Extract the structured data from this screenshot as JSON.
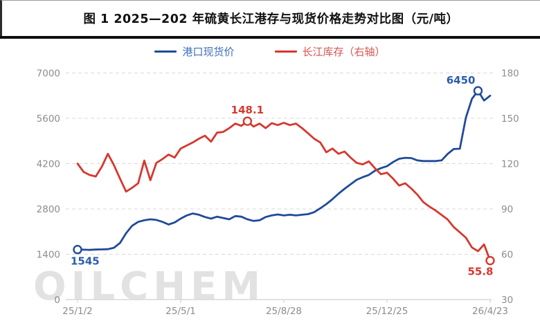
{
  "title": "图 1 2025—202 年硫黄长江港存与现货价格走势对比图（元/吨）",
  "legend": [
    {
      "label": "港口现货价",
      "color": "#1f4a99",
      "text_color": "#3a70b8"
    },
    {
      "label": "长江库存（右轴）",
      "color": "#d6372e",
      "text_color": "#d4554e"
    }
  ],
  "watermark": "OILCHEM",
  "colors": {
    "blue_series": "#1f4a99",
    "red_series": "#d6372e",
    "blue_annotation": "#2b5cae",
    "red_annotation": "#d6372e",
    "axis_label": "#8c8c8c",
    "gridline": "#d8d8d8",
    "axis_line": "#d9d9d9",
    "title_text": "#111111",
    "divider": "#0d0d0d",
    "watermark": "#e2e2e2"
  },
  "chart_data": {
    "type": "line",
    "title": "图 1 2025—202 年硫黄长江港存与现货价格走势对比图（元/吨）",
    "x_tick_labels": [
      "25/1/2",
      "25/5/1",
      "25/8/28",
      "25/12/25",
      "26/4/23"
    ],
    "x_tick_indices": [
      0,
      17,
      34,
      51,
      68
    ],
    "left_axis": {
      "ticks": [
        7000,
        5600,
        4200,
        2800,
        1400,
        0
      ],
      "min": 0,
      "max": 7000
    },
    "right_axis": {
      "ticks": [
        180,
        150,
        120,
        90,
        60,
        30
      ],
      "min": 30,
      "max": 180
    },
    "grid": "horizontal-dashed",
    "legend_position": "top-center",
    "series": [
      {
        "name": "港口现货价",
        "axis": "left",
        "color": "#1f4a99",
        "values": [
          1545,
          1540,
          1535,
          1545,
          1550,
          1555,
          1600,
          1750,
          2050,
          2280,
          2400,
          2450,
          2480,
          2460,
          2400,
          2320,
          2380,
          2500,
          2600,
          2660,
          2620,
          2550,
          2500,
          2560,
          2520,
          2480,
          2580,
          2560,
          2480,
          2430,
          2450,
          2550,
          2600,
          2630,
          2600,
          2620,
          2600,
          2620,
          2640,
          2700,
          2820,
          2950,
          3100,
          3270,
          3420,
          3560,
          3700,
          3780,
          3850,
          3980,
          4060,
          4120,
          4250,
          4350,
          4380,
          4370,
          4300,
          4280,
          4280,
          4280,
          4300,
          4500,
          4650,
          4660,
          5620,
          6200,
          6450,
          6150,
          6300
        ],
        "annotations": [
          {
            "at": "first",
            "label": "1545",
            "placement": "below"
          },
          {
            "at": "max",
            "label": "6450",
            "placement": "left-above"
          }
        ]
      },
      {
        "name": "长江库存（右轴）",
        "axis": "right",
        "color": "#d6372e",
        "values": [
          120,
          114.5,
          112.5,
          111.5,
          118,
          126.5,
          119,
          110,
          101.5,
          104,
          107,
          122,
          109,
          120.5,
          123,
          126,
          124,
          130,
          132,
          134,
          136.5,
          138.5,
          134.5,
          140.5,
          141,
          143.5,
          146.5,
          145,
          148.1,
          144.5,
          146.5,
          143.5,
          146.8,
          145.5,
          147,
          145.5,
          146.5,
          143.5,
          140,
          136.5,
          134,
          127.5,
          130,
          126.5,
          128,
          124,
          120.5,
          119.5,
          121.5,
          117,
          113,
          114,
          110,
          105.5,
          107,
          103.5,
          99.5,
          94.5,
          91.5,
          89,
          86,
          83,
          78,
          74.5,
          71,
          64.5,
          62,
          66.5,
          55.8
        ],
        "annotations": [
          {
            "at": "max",
            "label": "148.1",
            "placement": "above"
          },
          {
            "at": "last",
            "label": "55.8",
            "placement": "below"
          }
        ]
      }
    ]
  }
}
